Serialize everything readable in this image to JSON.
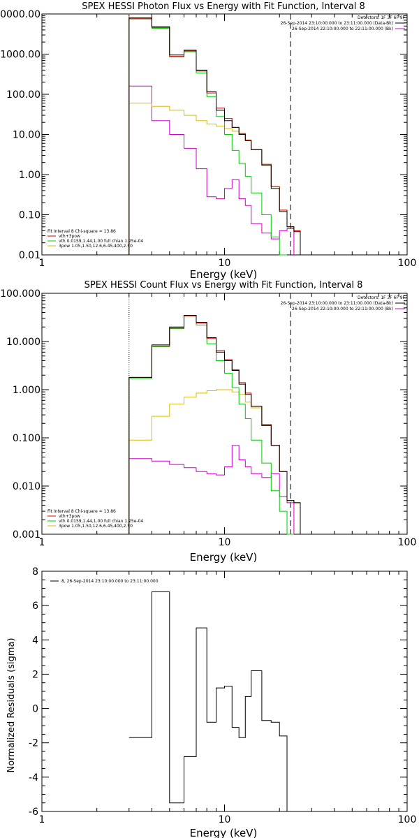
{
  "colors": {
    "total": "#000000",
    "vth_plus_3pow": "#cc0000",
    "vth": "#00cc00",
    "pow": "#ddbb00",
    "bk": "#cc00cc",
    "fit_limit": "#ff8800"
  },
  "chart_data": [
    {
      "type": "line",
      "step": true,
      "title": "SPEX HESSI Photon Flux vs Energy with Fit Function, Interval 8",
      "xlabel": "Energy (keV)",
      "ylabel": "",
      "xscale": "log",
      "yscale": "log",
      "xlim": [
        1,
        100
      ],
      "ylim": [
        0.01,
        10000
      ],
      "x_tick_labels": [
        "1",
        "10",
        "100"
      ],
      "y_tick_labels": [
        "0.01",
        "0.10",
        "1.00",
        "10.00",
        "100.00",
        "1000.00",
        "10000.00"
      ],
      "vlines": [
        {
          "x": 3.0,
          "style": "dotted",
          "color_key": "fit_limit"
        },
        {
          "x": 23.0,
          "style": "dashed",
          "color_key": "total"
        }
      ],
      "info_lines": [
        "Detectors: 1F 3F 6F 9F"
      ],
      "legend_right": [
        {
          "label": "26-Sep-2014 23:10:00.000 to 23:11:00.000 (Data-Bk)",
          "color_key": "total"
        },
        {
          "label": "26-Sep-2014 22:10:00.000 to 22:11:00.000 (Bk)",
          "color_key": "bk"
        }
      ],
      "fit_title": "Fit Interval 8   Chi-square = 13.86",
      "legend_left": [
        {
          "label": "vth+3pow",
          "color_key": "vth_plus_3pow"
        },
        {
          "label": "vth 0.0159,1.44,1.00  full chian 1.25e-04",
          "color_key": "vth"
        },
        {
          "label": "3pow 1.05,1.50,12.6,6.45,400,2.50",
          "color_key": "pow"
        }
      ],
      "edges": [
        3,
        4,
        5,
        6,
        7,
        8,
        9,
        10,
        11,
        12,
        13,
        14,
        16,
        18,
        20,
        22,
        24,
        26,
        28
      ],
      "series": [
        {
          "key": "total",
          "color_key": "total",
          "values": [
            8000,
            4800,
            950,
            1250,
            400,
            115,
            40,
            22,
            15,
            10,
            7,
            4.2,
            1.7,
            0.45,
            0.12,
            0.05,
            0.038,
            0.01
          ]
        },
        {
          "key": "vth_plus_3pow",
          "color_key": "vth_plus_3pow",
          "values": [
            7800,
            4600,
            880,
            1200,
            380,
            108,
            45,
            25,
            15,
            10.5,
            7.2,
            4.2,
            1.8,
            0.5,
            0.13,
            0.05,
            0.04,
            0.01
          ]
        },
        {
          "key": "vth",
          "color_key": "vth",
          "values": [
            7500,
            4400,
            850,
            1150,
            340,
            88,
            28,
            10,
            4,
            1.9,
            0.9,
            0.35,
            0.1,
            0.028,
            0.008
          ]
        },
        {
          "key": "pow",
          "color_key": "pow",
          "values": [
            60,
            50,
            40,
            30,
            22,
            18,
            16,
            14,
            12,
            10.5,
            7.2,
            4.2,
            1.8,
            0.5,
            0.13,
            0.05,
            0.04,
            0.01
          ]
        },
        {
          "key": "bk",
          "color_key": "bk",
          "values": [
            160,
            22,
            10,
            4.5,
            1.4,
            0.28,
            0.25,
            0.45,
            0.75,
            0.25,
            0.17,
            0.06,
            0.035,
            0.025,
            0.04,
            0.045
          ]
        }
      ]
    },
    {
      "type": "line",
      "step": true,
      "title": "SPEX HESSI Count Flux vs Energy with Fit Function, Interval 8",
      "xlabel": "Energy (keV)",
      "ylabel": "",
      "xscale": "log",
      "yscale": "log",
      "xlim": [
        1,
        100
      ],
      "ylim": [
        0.001,
        100
      ],
      "x_tick_labels": [
        "1",
        "10",
        "100"
      ],
      "y_tick_labels": [
        "0.001",
        "0.010",
        "0.100",
        "1.000",
        "10.000",
        "100.000"
      ],
      "vlines": [
        {
          "x": 3.0,
          "style": "dotted",
          "color_key": "total"
        },
        {
          "x": 23.0,
          "style": "dashed",
          "color_key": "total"
        }
      ],
      "info_lines": [
        "Detectors: 1F 3F 6F 9F"
      ],
      "legend_right": [
        {
          "label": "26-Sep-2014 23:10:00.000 to 23:11:00.000 (Data-Bk)",
          "color_key": "total"
        },
        {
          "label": "26-Sep-2014 22:10:00.000 to 22:11:00.000 (Bk)",
          "color_key": "bk"
        }
      ],
      "fit_title": "Fit Interval 8   Chi-square = 13.86",
      "legend_left": [
        {
          "label": "vth+3pow",
          "color_key": "vth_plus_3pow"
        },
        {
          "label": "vth 0.0159,1.44,1.00  full chian 1.25e-04",
          "color_key": "vth"
        },
        {
          "label": "3pow 1.05,1.50,12.6,6.45,400,2.50",
          "color_key": "pow"
        }
      ],
      "edges": [
        3,
        4,
        5,
        6,
        7,
        8,
        9,
        10,
        11,
        12,
        13,
        14,
        16,
        18,
        20,
        22,
        24,
        26,
        28
      ],
      "series": [
        {
          "key": "total",
          "color_key": "total",
          "values": [
            1.8,
            8.5,
            20,
            35,
            25,
            12,
            6,
            4,
            2.5,
            1.3,
            0.8,
            0.45,
            0.18,
            0.07,
            0.02,
            0.005,
            0.0045,
            0.001
          ]
        },
        {
          "key": "vth_plus_3pow",
          "color_key": "vth_plus_3pow",
          "values": [
            1.8,
            8.0,
            19,
            34,
            24,
            11.5,
            6.5,
            4.2,
            2.6,
            1.4,
            0.85,
            0.45,
            0.19,
            0.07,
            0.02,
            0.005,
            0.0045,
            0.001
          ]
        },
        {
          "key": "vth",
          "color_key": "vth",
          "values": [
            1.7,
            7.8,
            18.5,
            34,
            22,
            9,
            4,
            2.2,
            1.1,
            0.5,
            0.25,
            0.09,
            0.03,
            0.008,
            0.003,
            0.001
          ]
        },
        {
          "key": "pow",
          "color_key": "pow",
          "values": [
            0.09,
            0.28,
            0.5,
            0.7,
            0.85,
            0.95,
            1.0,
            1.0,
            0.9,
            0.8,
            0.55,
            0.42,
            0.18,
            0.07,
            0.02,
            0.005,
            0.0045,
            0.001
          ]
        },
        {
          "key": "bk",
          "color_key": "bk",
          "values": [
            0.037,
            0.033,
            0.028,
            0.024,
            0.02,
            0.018,
            0.017,
            0.025,
            0.07,
            0.035,
            0.025,
            0.018,
            0.015,
            0.018,
            0.006,
            0.0045
          ]
        }
      ]
    },
    {
      "type": "line",
      "step": true,
      "title": "",
      "xlabel": "Energy (keV)",
      "ylabel": "Normalized Residuals (sigma)",
      "xscale": "log",
      "yscale": "linear",
      "xlim": [
        1,
        100
      ],
      "ylim": [
        -6,
        8
      ],
      "x_tick_labels": [
        "1",
        "10",
        "100"
      ],
      "y_tick_labels": [
        "-6",
        "-4",
        "-2",
        "0",
        "2",
        "4",
        "6",
        "8"
      ],
      "legend": [
        {
          "label": "8, 26-Sep-2014 23:10:00.000 to 23:11:00.000",
          "color_key": "total"
        }
      ],
      "edges": [
        3,
        4,
        5,
        6,
        7,
        8,
        9,
        10,
        11,
        12,
        13,
        14,
        16,
        18,
        20,
        22
      ],
      "series": [
        {
          "key": "residuals",
          "color_key": "total",
          "values": [
            -1.7,
            6.8,
            -5.5,
            -2.8,
            4.7,
            -0.8,
            1.2,
            1.3,
            -1.1,
            -1.7,
            0.7,
            2.2,
            -0.7,
            -0.8,
            -1.6
          ]
        }
      ]
    }
  ]
}
